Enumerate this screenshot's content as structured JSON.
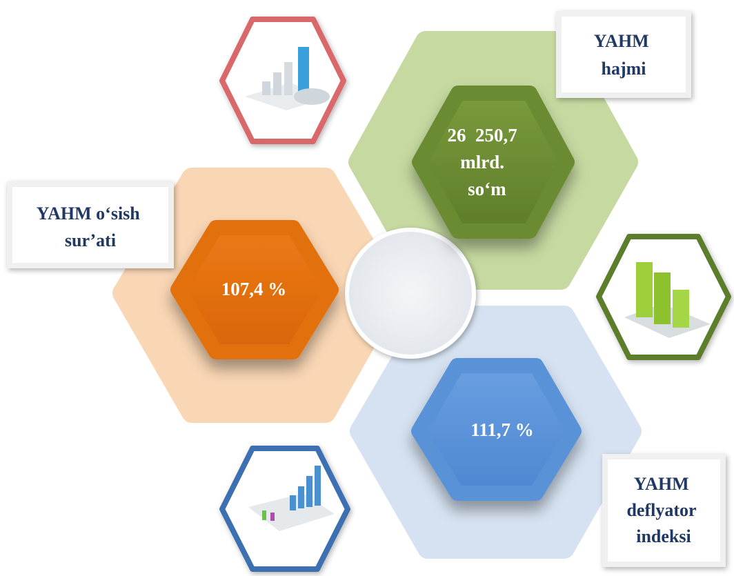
{
  "blocks": [
    {
      "label": [
        "YAHM",
        "hajmi"
      ],
      "value": [
        "26  250,7",
        "mlrd.",
        "so‘m"
      ]
    },
    {
      "label": [
        "YAHM o‘sish",
        "sur’ati"
      ],
      "value": [
        "107,4 %"
      ]
    },
    {
      "label": [
        "YAHM",
        "deflyator",
        "indeksi"
      ],
      "value": [
        "111,7 %"
      ]
    }
  ]
}
